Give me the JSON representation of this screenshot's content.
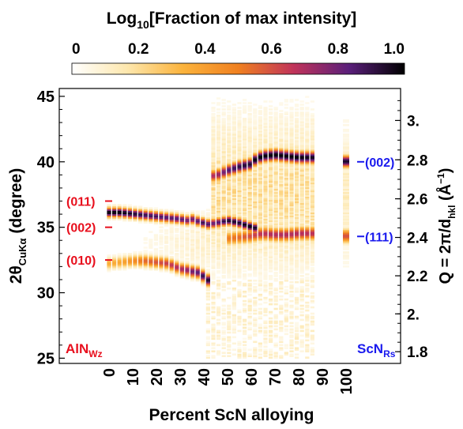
{
  "chart_data": {
    "type": "heatmap",
    "title": "Log",
    "title_sub": "10",
    "title_rest": "[Fraction of max intensity]",
    "colorbar": {
      "ticks": [
        "0",
        "0.2",
        "0.4",
        "0.6",
        "0.8",
        "1.0"
      ],
      "tick_values": [
        0,
        0.2,
        0.4,
        0.6,
        0.8,
        1.0
      ],
      "colors": [
        "#ffffff",
        "#fde7ad",
        "#fbb33c",
        "#f08020",
        "#c0335a",
        "#5a1f7a",
        "#000000"
      ]
    },
    "xlabel": "Percent ScN alloying",
    "x_ticks": [
      "0",
      "10",
      "20",
      "30",
      "40",
      "50",
      "60",
      "70",
      "80",
      "90",
      "100"
    ],
    "x_tick_values": [
      0,
      10,
      20,
      30,
      40,
      50,
      60,
      70,
      80,
      90,
      100
    ],
    "ylabel_left": {
      "prefix": "2θ",
      "sub": "CuKα",
      "suffix": " (degree)"
    },
    "y_left_ticks": [
      "25",
      "30",
      "35",
      "40",
      "45"
    ],
    "y_left_values": [
      25,
      30,
      35,
      40,
      45
    ],
    "ylim": [
      24.6,
      45.6
    ],
    "ylabel_right": {
      "prefix": "Q = 2π/d",
      "sub": "hkl",
      "suffix": " (Å",
      "sup": "−1",
      "close": ")"
    },
    "y_right_ticks": [
      "1.8",
      "2.",
      "2.2",
      "2.4",
      "2.6",
      "2.8",
      "3."
    ],
    "y_right_values": [
      1.8,
      2.0,
      2.2,
      2.4,
      2.6,
      2.8,
      3.0
    ],
    "wurtzite_peaks": [
      {
        "label": "(011)",
        "two_theta": 37.0
      },
      {
        "label": "(002)",
        "two_theta": 35.0
      },
      {
        "label": "(010)",
        "two_theta": 32.5
      }
    ],
    "rocksalt_peaks": [
      {
        "label": "(002)",
        "two_theta": 40.0
      },
      {
        "label": "(111)",
        "two_theta": 34.3
      }
    ],
    "phase_labels": {
      "left": {
        "text": "AlN",
        "sub": "Wz"
      },
      "right": {
        "text": "ScN",
        "sub": "Rs"
      }
    },
    "colors": {
      "wurtzite": "#e8101e",
      "rocksalt": "#1a1aee"
    },
    "peak_tracks": [
      {
        "x": [
          0,
          5,
          10,
          15,
          20,
          25,
          30,
          33,
          35,
          38,
          40,
          42,
          45,
          48,
          50,
          55,
          60,
          62
        ],
        "y": [
          36.1,
          36.1,
          36.0,
          35.9,
          35.8,
          35.7,
          35.6,
          35.5,
          35.6,
          35.4,
          35.3,
          35.2,
          35.3,
          35.4,
          35.5,
          35.3,
          35.0,
          34.9
        ],
        "intensity": [
          1.0,
          1.0,
          0.95,
          0.9,
          0.88,
          0.85,
          0.85,
          0.8,
          0.8,
          0.85,
          0.9,
          0.85,
          0.8,
          0.9,
          0.95,
          0.95,
          1.0,
          0.95
        ],
        "width": 0.25
      },
      {
        "x": [
          0,
          5,
          10,
          15,
          20,
          25,
          30,
          33,
          35,
          38,
          40,
          42
        ],
        "y": [
          32.2,
          32.3,
          32.4,
          32.4,
          32.3,
          32.2,
          31.8,
          31.7,
          31.6,
          31.5,
          31.2,
          30.9
        ],
        "intensity": [
          0.35,
          0.38,
          0.45,
          0.55,
          0.6,
          0.65,
          0.7,
          0.75,
          0.8,
          0.85,
          0.92,
          0.95
        ],
        "width": 0.3
      },
      {
        "x": [
          45,
          50,
          55,
          60,
          62,
          65,
          70,
          75,
          80,
          85,
          88
        ],
        "y": [
          38.9,
          39.3,
          39.6,
          39.8,
          40.2,
          40.4,
          40.5,
          40.4,
          40.3,
          40.3,
          40.3
        ],
        "intensity": [
          0.7,
          0.85,
          0.92,
          0.95,
          1.0,
          1.0,
          1.0,
          1.0,
          1.0,
          0.97,
          0.95
        ],
        "width": 0.32
      },
      {
        "x": [
          50,
          55,
          60,
          62,
          65,
          70,
          75,
          80,
          85,
          88
        ],
        "y": [
          34.1,
          34.2,
          34.3,
          34.4,
          34.5,
          34.4,
          34.4,
          34.5,
          34.5,
          34.5
        ],
        "intensity": [
          0.5,
          0.55,
          0.62,
          0.65,
          0.68,
          0.7,
          0.7,
          0.7,
          0.68,
          0.68
        ],
        "width": 0.35
      },
      {
        "x": [
          100
        ],
        "y": [
          40.0
        ],
        "intensity": [
          0.95
        ],
        "width": 0.3
      },
      {
        "x": [
          100
        ],
        "y": [
          34.3
        ],
        "intensity": [
          0.6
        ],
        "width": 0.35
      }
    ]
  }
}
